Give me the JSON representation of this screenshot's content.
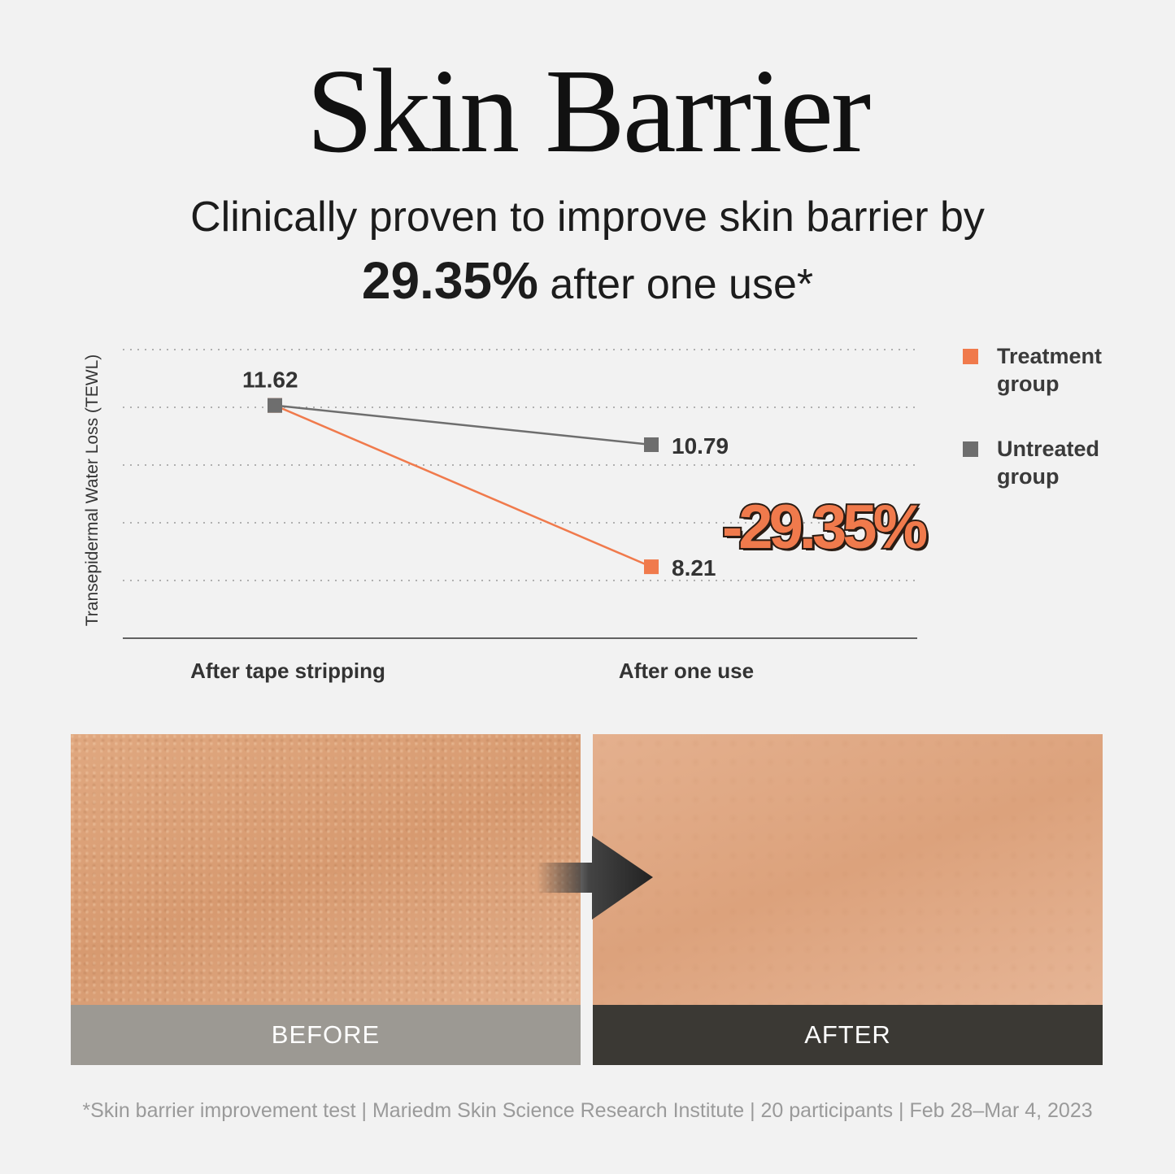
{
  "title": "Skin Barrier",
  "subtitle": {
    "line1": "Clinically proven to improve skin barrier by",
    "highlight": "29.35%",
    "line2_rest": " after one use*"
  },
  "chart_data": {
    "type": "line",
    "ylabel": "Transepidermal Water Loss (TEWL)",
    "categories": [
      "After tape stripping",
      "After one use"
    ],
    "ylim": [
      6.7,
      12.8
    ],
    "grid": true,
    "legend_position": "right",
    "series": [
      {
        "name": "Treatment group",
        "values": [
          11.62,
          8.21
        ],
        "labels": [
          "11.62",
          "8.21"
        ],
        "color": "#f07a4c"
      },
      {
        "name": "Untreated group",
        "values": [
          11.62,
          10.79
        ],
        "labels": [
          "",
          "10.79"
        ],
        "color": "#6e6e6e"
      }
    ],
    "annotation": "-29.35%"
  },
  "legend": [
    {
      "line1": "Treatment",
      "line2": "group"
    },
    {
      "line1": "Untreated",
      "line2": "group"
    }
  ],
  "photos": {
    "before": "BEFORE",
    "after": "AFTER",
    "arrow_icon": "arrow-right-icon"
  },
  "footnote": "*Skin barrier improvement test | Mariedm Skin Science Research Institute | 20 participants | Feb 28–Mar 4, 2023"
}
